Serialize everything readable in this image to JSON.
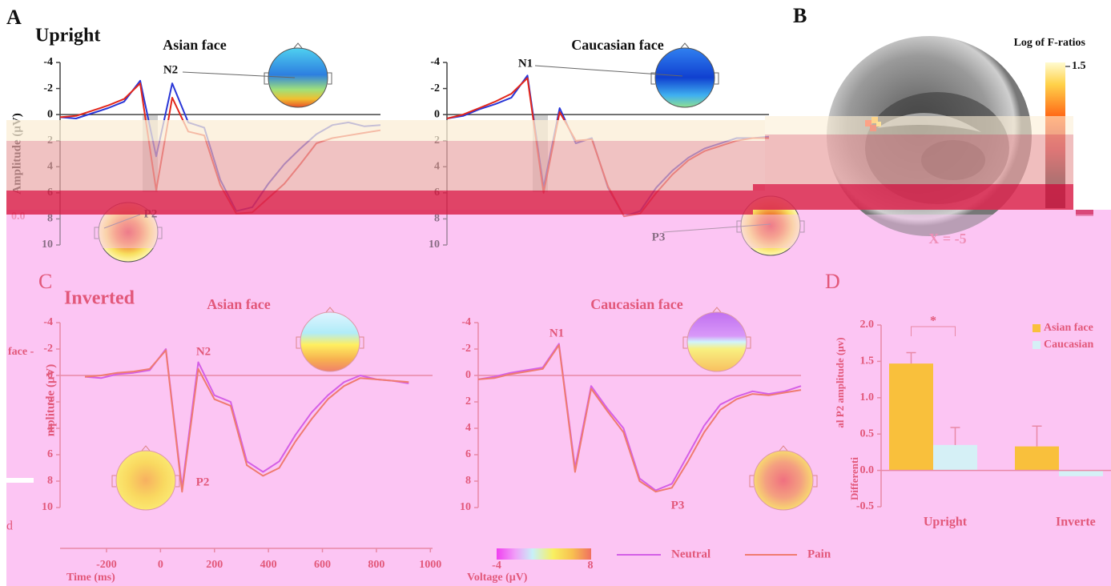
{
  "panel_labels": {
    "a": "A",
    "b": "B",
    "c": "C",
    "d": "D"
  },
  "sections": {
    "upright": "Upright",
    "inverted": "Inverted"
  },
  "fragments": [
    "0.0",
    "face -",
    "mplitude (μV)",
    "d"
  ],
  "brain": {
    "colorbar_label": "Log of F-ratios",
    "colorbar_max": 1.5,
    "slice": "X = -5"
  },
  "voltage_scale": {
    "label": "Voltage (μV)",
    "min": -4,
    "max": 8
  },
  "chart_data": [
    {
      "type": "line",
      "title": "Asian face",
      "ylabel": "Amplitude (μV)",
      "x": [
        -250,
        -190,
        -130,
        -70,
        -10,
        50,
        110,
        170,
        230,
        290,
        350,
        410,
        470,
        530,
        590,
        650,
        710,
        770,
        830,
        890,
        950
      ],
      "xlim": [
        -250,
        950
      ],
      "ylim": [
        -4,
        10
      ],
      "y_inverted": true,
      "yticks": [
        -4,
        -2,
        0,
        2,
        4,
        6,
        8,
        10
      ],
      "series": [
        {
          "color": "#2936d6",
          "values": [
            0.2,
            0.3,
            -0.1,
            -0.5,
            -1.0,
            -2.6,
            3.2,
            -2.4,
            0.6,
            1.0,
            5.0,
            7.4,
            7.1,
            5.3,
            3.8,
            2.6,
            1.5,
            0.8,
            0.6,
            0.9,
            0.8
          ]
        },
        {
          "color": "#e3271b",
          "values": [
            0.2,
            0.1,
            -0.3,
            -0.7,
            -1.2,
            -2.4,
            5.8,
            -1.3,
            1.3,
            1.6,
            5.4,
            7.6,
            7.5,
            6.4,
            5.3,
            3.8,
            2.2,
            1.8,
            1.6,
            1.4,
            1.2
          ]
        }
      ],
      "annotations": [
        "N2",
        "P2"
      ]
    },
    {
      "type": "line",
      "title": "Caucasian face",
      "x": [
        -250,
        -190,
        -130,
        -70,
        -10,
        50,
        110,
        170,
        230,
        290,
        350,
        410,
        470,
        530,
        590,
        650,
        710,
        770,
        830,
        890,
        950
      ],
      "xlim": [
        -250,
        950
      ],
      "ylim": [
        -4,
        10
      ],
      "y_inverted": true,
      "yticks": [
        -4,
        -2,
        0,
        2,
        4,
        6,
        8,
        10
      ],
      "series": [
        {
          "color": "#2936d6",
          "values": [
            0.3,
            0.1,
            -0.4,
            -0.8,
            -1.3,
            -3.0,
            5.6,
            -0.5,
            2.2,
            1.8,
            5.6,
            7.8,
            7.4,
            5.6,
            4.3,
            3.3,
            2.6,
            2.2,
            1.8,
            1.8,
            1.7
          ]
        },
        {
          "color": "#e3271b",
          "values": [
            0.3,
            0.0,
            -0.5,
            -1.0,
            -1.6,
            -2.8,
            6.0,
            -0.2,
            2.0,
            1.9,
            5.5,
            7.8,
            7.6,
            6.0,
            4.6,
            3.5,
            2.8,
            2.4,
            2.0,
            1.8,
            1.8
          ]
        }
      ],
      "annotations": [
        "N1",
        "P3"
      ]
    },
    {
      "type": "line",
      "title": "Asian face",
      "xlabel": "Time (ms)",
      "x": [
        -280,
        -220,
        -160,
        -100,
        -40,
        20,
        80,
        140,
        200,
        260,
        320,
        380,
        440,
        500,
        560,
        620,
        680,
        740,
        800,
        860,
        920
      ],
      "xlim": [
        -372,
        1008
      ],
      "xticks": [
        -200,
        0,
        200,
        400,
        600,
        800,
        1000
      ],
      "ylim": [
        -4,
        10
      ],
      "y_inverted": true,
      "yticks": [
        -4,
        -2,
        0,
        2,
        4,
        6,
        8,
        10
      ],
      "series": [
        {
          "name": "Neutral",
          "color": "#d45fe6",
          "values": [
            0.1,
            0.2,
            -0.1,
            -0.2,
            -0.4,
            -2.0,
            8.5,
            -1.0,
            1.5,
            2.0,
            6.5,
            7.3,
            6.5,
            4.5,
            2.8,
            1.5,
            0.5,
            0.0,
            0.3,
            0.4,
            0.6
          ]
        },
        {
          "name": "Pain",
          "color": "#ef7b70",
          "values": [
            0.1,
            0.0,
            -0.2,
            -0.3,
            -0.5,
            -1.9,
            8.8,
            -0.5,
            1.8,
            2.3,
            6.8,
            7.6,
            7.0,
            5.0,
            3.3,
            1.8,
            0.8,
            0.2,
            0.3,
            0.4,
            0.5
          ]
        }
      ],
      "annotations": [
        "N2",
        "P2"
      ]
    },
    {
      "type": "line",
      "title": "Caucasian face",
      "x": [
        -250,
        -190,
        -130,
        -70,
        -10,
        50,
        110,
        170,
        230,
        290,
        350,
        410,
        470,
        530,
        590,
        650,
        710,
        770,
        830,
        890,
        950
      ],
      "xlim": [
        -250,
        950
      ],
      "ylim": [
        -4,
        10
      ],
      "y_inverted": true,
      "yticks": [
        -4,
        -2,
        0,
        2,
        4,
        6,
        8,
        10
      ],
      "series": [
        {
          "color": "#d45fe6",
          "values": [
            0.3,
            0.1,
            -0.2,
            -0.4,
            -0.6,
            -2.4,
            7.0,
            0.8,
            2.5,
            4.0,
            7.8,
            8.7,
            8.2,
            6.0,
            3.8,
            2.2,
            1.6,
            1.2,
            1.4,
            1.2,
            0.8
          ]
        },
        {
          "color": "#ef7b70",
          "values": [
            0.3,
            0.2,
            -0.1,
            -0.3,
            -0.5,
            -2.3,
            7.3,
            1.0,
            2.7,
            4.3,
            8.0,
            8.8,
            8.5,
            6.5,
            4.3,
            2.6,
            1.8,
            1.4,
            1.5,
            1.3,
            1.1
          ]
        }
      ],
      "annotations": [
        "N1",
        "P3"
      ]
    },
    {
      "type": "bar",
      "categories": [
        "Upright",
        "Inverte"
      ],
      "ylabel_parts": [
        "al P2 amplitude (μv)",
        "Differenti"
      ],
      "ylim": [
        -0.5,
        2.0
      ],
      "yticks": [
        -0.5,
        {
          "value": 0,
          "label": "0.0"
        },
        0.5,
        {
          "value": 1,
          "label": "1.0"
        },
        1.5,
        {
          "value": 2,
          "label": "2.0"
        }
      ],
      "series": [
        {
          "name": "Asian face",
          "color": "#f9c03c",
          "values": [
            1.47,
            0.33
          ],
          "errors": [
            0.15,
            0.28
          ]
        },
        {
          "name": "Caucasian",
          "color": "#d5f0f6",
          "values": [
            0.35,
            -0.08
          ],
          "errors": [
            0.24,
            null
          ]
        }
      ],
      "significance": "*"
    }
  ]
}
